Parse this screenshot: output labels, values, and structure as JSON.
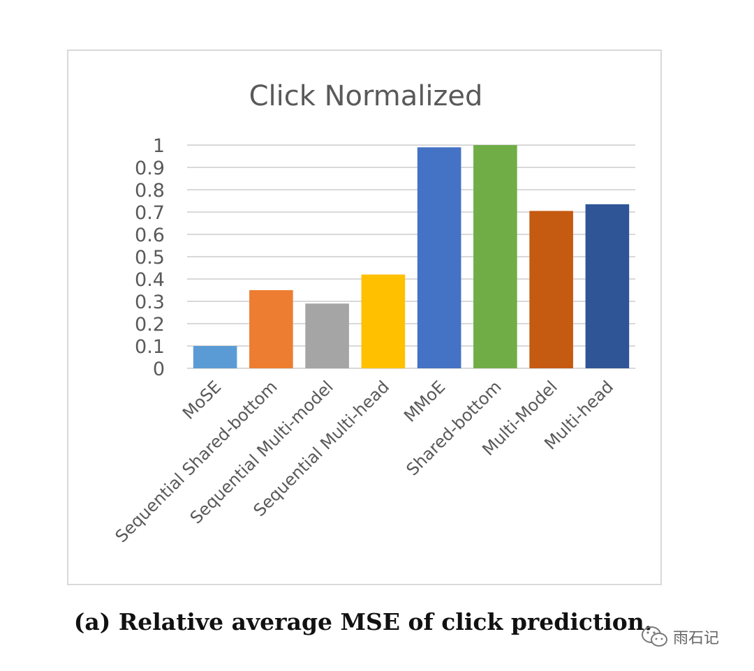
{
  "chart_data": {
    "type": "bar",
    "title": "Click Normalized",
    "xlabel": "",
    "ylabel": "",
    "ylim": [
      0,
      1
    ],
    "yticks": [
      "0",
      "0.1",
      "0.2",
      "0.3",
      "0.4",
      "0.5",
      "0.6",
      "0.7",
      "0.8",
      "0.9",
      "1"
    ],
    "grid": true,
    "categories": [
      "MoSE",
      "Sequential Shared-bottom",
      "Sequential Multi-model",
      "Sequential Multi-head",
      "MMoE",
      "Shared-bottom",
      "Multi-Model",
      "Multi-head"
    ],
    "values": [
      0.1,
      0.35,
      0.29,
      0.42,
      0.99,
      1.0,
      0.705,
      0.735
    ],
    "colors": [
      "#5b9bd5",
      "#ed7d31",
      "#a5a5a5",
      "#ffc000",
      "#4472c4",
      "#70ad47",
      "#c55a11",
      "#2f5597"
    ]
  },
  "caption": "(a) Relative average MSE of click prediction.",
  "watermark": {
    "text": "雨石记",
    "icon": "wechat-icon"
  }
}
